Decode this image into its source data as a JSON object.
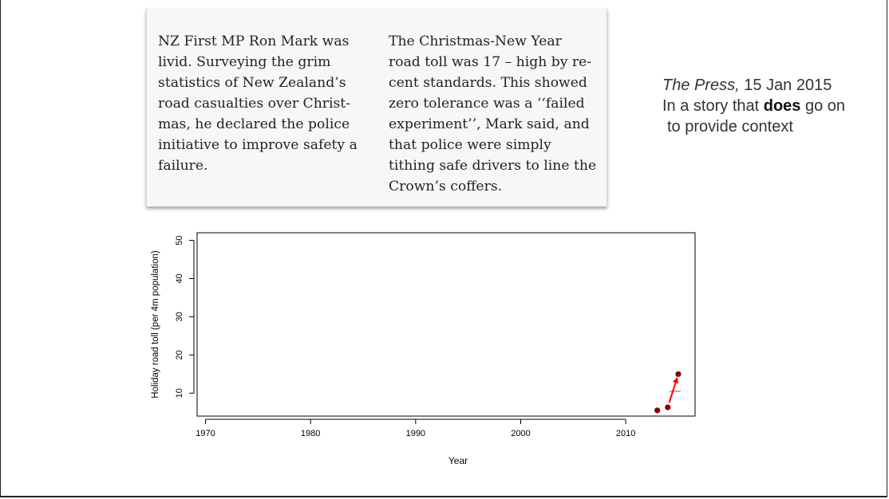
{
  "clipping": {
    "left_paragraph": "NZ First MP Ron Mark was\nlivid. Surveying the grim\nstatistics of New Zealand’s\nroad casualties over Christ-\nmas, he declared the police\ninitiative to improve safety a\nfailure.",
    "right_paragraph": "The Christmas-New Year\nroad toll was 17 – high by re-\ncent standards. This showed\nzero tolerance was a ‘‘failed\nexperiment’’, Mark said, and\nthat police were simply\ntithing safe drivers to line the\nCrown’s coffers."
  },
  "caption": {
    "source": "The Press,",
    "date": " 15 Jan 2015",
    "line2_before": "In a story that ",
    "line2_bold": "does",
    "line2_after": " go on",
    "line3": "to provide context"
  },
  "chart_data": {
    "type": "scatter",
    "xlabel": "Year",
    "ylabel": "Holiday road toll (per 4m population)",
    "xlim": [
      1969.2,
      2016.6
    ],
    "ylim": [
      4,
      52
    ],
    "xticks": [
      1970,
      1980,
      1990,
      2000,
      2010
    ],
    "yticks": [
      10,
      20,
      30,
      40,
      50
    ],
    "points": [
      {
        "x": 2013,
        "y": 5.5
      },
      {
        "x": 2014,
        "y": 6.3
      },
      {
        "x": 2015,
        "y": 15
      }
    ],
    "arrow": {
      "from": {
        "x": 2014,
        "y": 6.3
      },
      "to": {
        "x": 2015,
        "y": 15
      }
    },
    "reference_mark": {
      "x": 2014.7,
      "y": 10.5
    },
    "colors": {
      "points": "#8b0000",
      "arrow": "#ff0000",
      "reference": "#b0b0b0"
    },
    "grid": false
  }
}
